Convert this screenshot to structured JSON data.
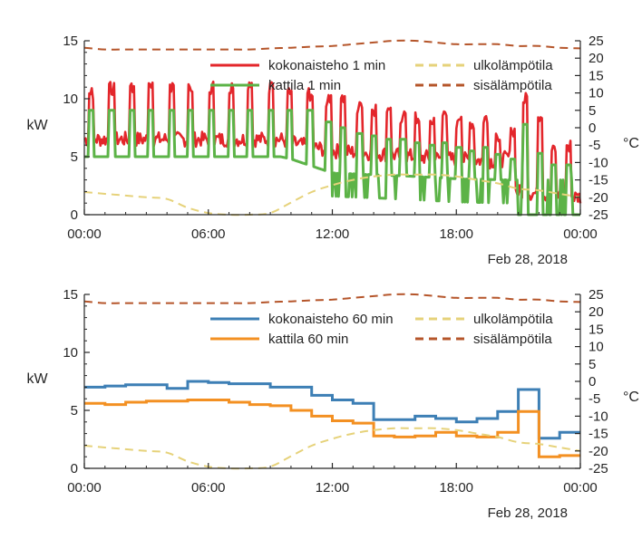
{
  "chart_data": [
    {
      "type": "line",
      "ylabel_left": "kW",
      "ylabel_right": "°C",
      "date_label": "Feb 28, 2018",
      "x_ticks": [
        "00:00",
        "06:00",
        "12:00",
        "18:00",
        "00:00"
      ],
      "xlim_hours": [
        0,
        24
      ],
      "ylim_left": [
        0,
        15
      ],
      "yticks_left": [
        "0",
        "5",
        "10",
        "15"
      ],
      "ylim_right": [
        -25,
        25
      ],
      "yticks_right": [
        "25",
        "20",
        "15",
        "10",
        "5",
        "0",
        "-5",
        "-10",
        "-15",
        "-20",
        "-25"
      ],
      "legend": [
        {
          "name": "kokonaisteho 1 min",
          "color": "#e3262b",
          "style": "solid",
          "col": 0,
          "row": 0
        },
        {
          "name": "kattila 1 min",
          "color": "#5cb347",
          "style": "solid",
          "col": 0,
          "row": 1
        },
        {
          "name": "ulkolämpötila",
          "color": "#e6d27a",
          "style": "dashed",
          "col": 1,
          "row": 0
        },
        {
          "name": "sisälämpötila",
          "color": "#b5552a",
          "style": "dashed",
          "col": 1,
          "row": 1
        }
      ],
      "series": [
        {
          "name": "kokonaisteho 1 min",
          "axis": "left",
          "color": "#e3262b",
          "kind": "pulse",
          "spikes_h": [
            0.2,
            1.2,
            2.2,
            3.1,
            4.1,
            5.0,
            6.0,
            7.0,
            7.9,
            8.9,
            9.8,
            10.8,
            11.7,
            12.4,
            13.2,
            13.9,
            14.6,
            15.3,
            16.0,
            16.7,
            17.3,
            18.0,
            18.6,
            19.3,
            19.9,
            20.6,
            21.2,
            21.9,
            22.6,
            23.3
          ],
          "spikes_v": [
            11,
            11.5,
            11.5,
            11.5,
            11.5,
            11.5,
            11.5,
            11.5,
            11.5,
            11.5,
            11.5,
            11,
            10.5,
            10.5,
            9.8,
            9.6,
            9.5,
            9,
            9,
            8.5,
            9,
            8.5,
            8,
            8.5,
            7.5,
            7.5,
            10.5,
            8.5,
            6.5,
            6.5
          ],
          "base": [
            [
              0,
              6.5
            ],
            [
              9.5,
              6.5
            ],
            [
              10,
              6.2
            ],
            [
              12,
              5.5
            ],
            [
              14,
              5.3
            ],
            [
              16,
              5
            ],
            [
              18,
              4.8
            ],
            [
              20,
              4.6
            ],
            [
              20.6,
              5
            ],
            [
              20.7,
              2
            ],
            [
              24,
              1.5
            ]
          ]
        },
        {
          "name": "kattila 1 min",
          "axis": "left",
          "color": "#5cb347",
          "kind": "pulse",
          "spikes_h": [
            0.2,
            1.2,
            2.2,
            3.1,
            4.1,
            5.0,
            6.0,
            7.0,
            7.9,
            8.9,
            9.8,
            10.8,
            11.7,
            12.4,
            13.2,
            13.9,
            14.6,
            15.3,
            16.0,
            16.7,
            17.3,
            18.0,
            18.6,
            19.3,
            19.9,
            20.6,
            21.2,
            21.9,
            22.6,
            23.3
          ],
          "spikes_v": [
            9,
            9,
            9,
            9,
            9,
            9,
            9,
            9,
            9,
            9,
            9,
            9,
            8,
            7.5,
            7,
            6.8,
            6.5,
            6.5,
            6.2,
            6,
            6.2,
            5.8,
            5.5,
            5.8,
            5.2,
            4.8,
            7.8,
            5.3,
            4.3,
            4.3
          ],
          "base": [
            [
              0,
              5
            ],
            [
              9.5,
              5
            ],
            [
              10,
              4.8
            ],
            [
              12,
              3.6
            ],
            [
              16,
              3.3
            ],
            [
              18,
              3.1
            ],
            [
              20.6,
              3
            ],
            [
              20.7,
              0
            ],
            [
              24,
              0
            ]
          ]
        },
        {
          "name": "ulkolämpötila",
          "axis": "right",
          "color": "#e6d27a",
          "kind": "line",
          "dash": "9,6",
          "x": [
            0,
            1,
            2,
            3,
            4,
            5,
            6,
            7,
            8,
            9,
            10,
            11,
            12,
            13,
            14,
            15,
            16,
            17,
            18,
            19,
            20,
            21,
            22,
            23,
            24
          ],
          "y": [
            -18.5,
            -19,
            -19.5,
            -20,
            -20.5,
            -23,
            -24.5,
            -25,
            -25,
            -24.5,
            -21.5,
            -18.5,
            -16.5,
            -15,
            -14,
            -13.5,
            -13.5,
            -13.5,
            -14,
            -15,
            -16,
            -17.5,
            -18,
            -19,
            -20
          ]
        },
        {
          "name": "sisälämpötila",
          "axis": "right",
          "color": "#b5552a",
          "kind": "line",
          "dash": "9,6",
          "x": [
            0,
            1,
            2,
            3,
            4,
            5,
            6,
            7,
            8,
            9,
            10,
            11,
            12,
            13,
            14,
            15,
            16,
            17,
            18,
            19,
            20,
            21,
            22,
            23,
            24
          ],
          "y": [
            23,
            22.5,
            22.5,
            22.5,
            22.5,
            22.5,
            22.5,
            22.5,
            22.5,
            22.8,
            23,
            23.3,
            23.5,
            24,
            24.5,
            25,
            25,
            24.5,
            24,
            24,
            24,
            23.5,
            23.5,
            23,
            22.8
          ]
        }
      ]
    },
    {
      "type": "line",
      "ylabel_left": "kW",
      "ylabel_right": "°C",
      "date_label": "Feb 28, 2018",
      "x_ticks": [
        "00:00",
        "06:00",
        "12:00",
        "18:00",
        "00:00"
      ],
      "xlim_hours": [
        0,
        24
      ],
      "ylim_left": [
        0,
        15
      ],
      "yticks_left": [
        "0",
        "5",
        "10",
        "15"
      ],
      "ylim_right": [
        -25,
        25
      ],
      "yticks_right": [
        "25",
        "20",
        "15",
        "10",
        "5",
        "0",
        "-5",
        "-10",
        "-15",
        "-20",
        "-25"
      ],
      "legend": [
        {
          "name": "kokonaisteho 60 min",
          "color": "#3d7fb5",
          "style": "solid",
          "col": 0,
          "row": 0
        },
        {
          "name": "kattila 60 min",
          "color": "#f39022",
          "style": "solid",
          "col": 0,
          "row": 1
        },
        {
          "name": "ulkolämpötila",
          "color": "#e6d27a",
          "style": "dashed",
          "col": 1,
          "row": 0
        },
        {
          "name": "sisälämpötila",
          "color": "#b5552a",
          "style": "dashed",
          "col": 1,
          "row": 1
        }
      ],
      "series": [
        {
          "name": "kokonaisteho 60 min",
          "axis": "left",
          "color": "#3d7fb5",
          "kind": "step",
          "values": [
            7.0,
            7.1,
            7.2,
            7.2,
            6.9,
            7.5,
            7.4,
            7.3,
            7.3,
            7.0,
            7.0,
            6.3,
            5.9,
            5.6,
            4.2,
            4.2,
            4.5,
            4.3,
            4.0,
            4.3,
            4.9,
            6.8,
            2.6,
            3.1,
            2.5
          ]
        },
        {
          "name": "kattila 60 min",
          "axis": "left",
          "color": "#f39022",
          "kind": "step",
          "values": [
            5.6,
            5.5,
            5.7,
            5.8,
            5.8,
            5.9,
            5.9,
            5.7,
            5.5,
            5.4,
            5.0,
            4.5,
            4.1,
            3.9,
            2.8,
            2.7,
            2.8,
            3.1,
            2.8,
            2.7,
            3.1,
            4.9,
            1.0,
            1.1,
            0.7
          ]
        },
        {
          "name": "ulkolämpötila",
          "axis": "right",
          "color": "#e6d27a",
          "kind": "line",
          "dash": "9,6",
          "x": [
            0,
            1,
            2,
            3,
            4,
            5,
            6,
            7,
            8,
            9,
            10,
            11,
            12,
            13,
            14,
            15,
            16,
            17,
            18,
            19,
            20,
            21,
            22,
            23,
            24
          ],
          "y": [
            -18.5,
            -19,
            -19.5,
            -20,
            -20.5,
            -23,
            -24.5,
            -25,
            -25,
            -24.5,
            -21.5,
            -18.5,
            -16.5,
            -15,
            -14,
            -13.5,
            -13.5,
            -13.5,
            -14,
            -15,
            -16,
            -17.5,
            -18,
            -19,
            -20
          ]
        },
        {
          "name": "sisälämpötila",
          "axis": "right",
          "color": "#b5552a",
          "kind": "line",
          "dash": "9,6",
          "x": [
            0,
            1,
            2,
            3,
            4,
            5,
            6,
            7,
            8,
            9,
            10,
            11,
            12,
            13,
            14,
            15,
            16,
            17,
            18,
            19,
            20,
            21,
            22,
            23,
            24
          ],
          "y": [
            23,
            22.5,
            22.5,
            22.5,
            22.5,
            22.5,
            22.5,
            22.5,
            22.5,
            22.8,
            23,
            23.3,
            23.5,
            24,
            24.5,
            25,
            25,
            24.5,
            24,
            24,
            24,
            23.5,
            23.5,
            23,
            22.8
          ]
        }
      ]
    }
  ]
}
